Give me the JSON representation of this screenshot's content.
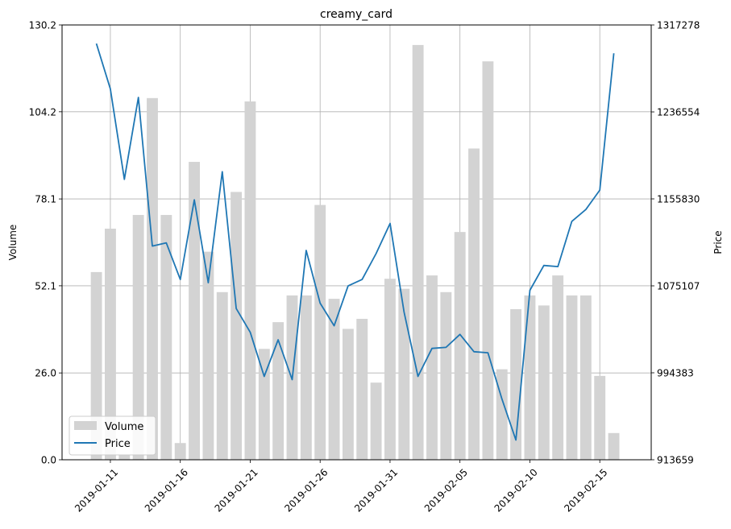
{
  "chart_data": {
    "type": "bar+line",
    "title": "creamy_card",
    "left_axis": {
      "label": "Volume",
      "ticks": [
        0.0,
        26.0,
        52.1,
        78.1,
        104.2,
        130.2
      ],
      "tick_labels": [
        "0.0",
        "26.0",
        "52.1",
        "78.1",
        "104.2",
        "130.2"
      ],
      "ylim": [
        0,
        130.2
      ]
    },
    "right_axis": {
      "label": "Price",
      "ticks": [
        913659,
        994383,
        1075107,
        1155830,
        1236554,
        1317278
      ],
      "tick_labels": [
        "913659",
        "994383",
        "1075107",
        "1155830",
        "1236554",
        "1317278"
      ],
      "ylim": [
        913659,
        1317278
      ]
    },
    "x_axis": {
      "tick_labels": [
        "2019-01-11",
        "2019-01-16",
        "2019-01-21",
        "2019-01-26",
        "2019-01-31",
        "2019-02-05",
        "2019-02-10",
        "2019-02-15"
      ]
    },
    "grid": true,
    "legend": {
      "position": "lower-left",
      "entries": [
        "Volume",
        "Price"
      ]
    },
    "dates": [
      "2019-01-10",
      "2019-01-11",
      "2019-01-12",
      "2019-01-13",
      "2019-01-14",
      "2019-01-15",
      "2019-01-16",
      "2019-01-17",
      "2019-01-18",
      "2019-01-19",
      "2019-01-20",
      "2019-01-21",
      "2019-01-22",
      "2019-01-23",
      "2019-01-24",
      "2019-01-25",
      "2019-01-26",
      "2019-01-27",
      "2019-01-28",
      "2019-01-29",
      "2019-01-30",
      "2019-01-31",
      "2019-02-01",
      "2019-02-02",
      "2019-02-03",
      "2019-02-04",
      "2019-02-05",
      "2019-02-06",
      "2019-02-07",
      "2019-02-08",
      "2019-02-09",
      "2019-02-10",
      "2019-02-11",
      "2019-02-12",
      "2019-02-13",
      "2019-02-14",
      "2019-02-15",
      "2019-02-16"
    ],
    "series": [
      {
        "name": "Volume",
        "kind": "bar",
        "color": "#d3d3d3",
        "values": [
          56.2,
          69.2,
          1.5,
          73.3,
          108.3,
          73.3,
          5.0,
          89.2,
          62.3,
          50.2,
          80.2,
          107.3,
          33.2,
          41.2,
          49.2,
          49.2,
          76.3,
          48.2,
          39.2,
          42.2,
          23.1,
          54.2,
          51.2,
          124.2,
          55.2,
          50.2,
          68.2,
          93.2,
          119.3,
          27.1,
          45.1,
          49.2,
          46.2,
          55.2,
          49.2,
          49.2,
          25.1,
          8.0
        ]
      },
      {
        "name": "Price",
        "kind": "line",
        "color": "#1f77b4",
        "values": [
          1300000,
          1258000,
          1174000,
          1250000,
          1112000,
          1115000,
          1081000,
          1155000,
          1078000,
          1181000,
          1054000,
          1032000,
          991000,
          1025000,
          988000,
          1108000,
          1059000,
          1038000,
          1075000,
          1081000,
          1105000,
          1133000,
          1051000,
          991000,
          1017000,
          1018000,
          1030000,
          1014000,
          1013000,
          970000,
          932000,
          1071000,
          1094000,
          1093000,
          1135000,
          1146000,
          1164000,
          1291000
        ]
      }
    ]
  }
}
